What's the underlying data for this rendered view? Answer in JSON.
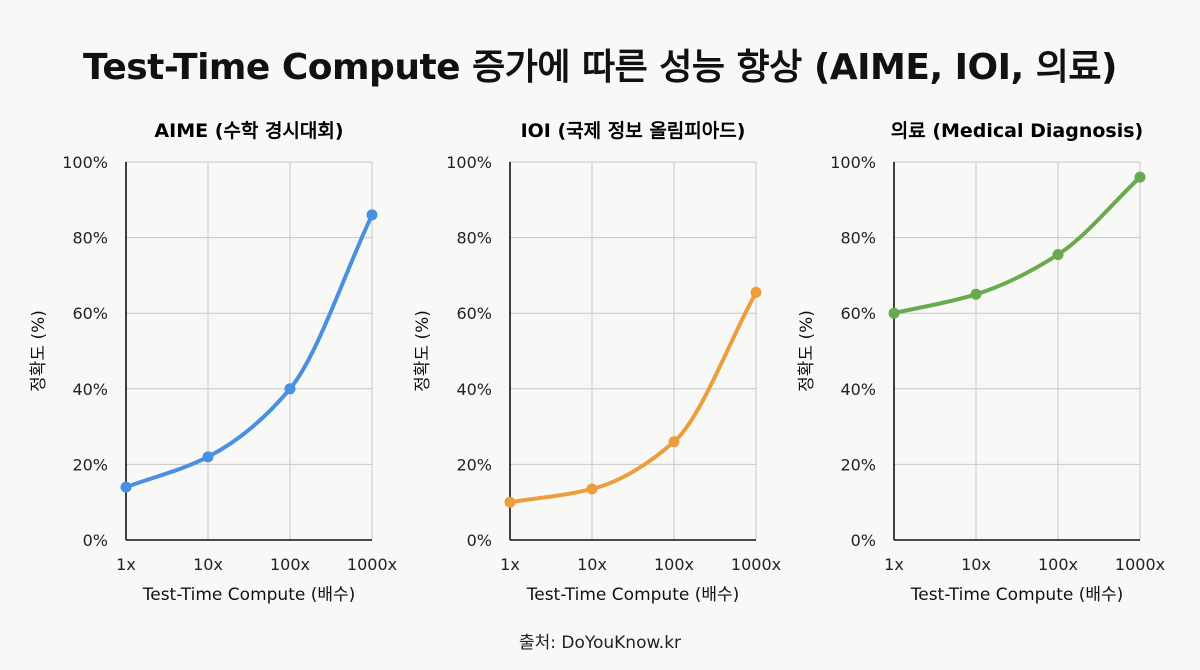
{
  "title": "Test-Time Compute 증가에 따른 성능 향상 (AIME, IOI, 의료)",
  "source": "출처: DoYouKnow.kr",
  "chart_data": [
    {
      "type": "line",
      "title": "AIME (수학 경시대회)",
      "xlabel": "Test-Time Compute (배수)",
      "ylabel": "정확도 (%)",
      "x": [
        "1x",
        "10x",
        "100x",
        "1000x"
      ],
      "x_scale": "log",
      "ylim": [
        0,
        100
      ],
      "yticks": [
        "0%",
        "20%",
        "40%",
        "60%",
        "80%",
        "100%"
      ],
      "grid": true,
      "series": [
        {
          "values": [
            14,
            22,
            40,
            86
          ],
          "color": "#4a90e2"
        }
      ]
    },
    {
      "type": "line",
      "title": "IOI (국제 정보 올림피아드)",
      "xlabel": "Test-Time Compute (배수)",
      "ylabel": "정확도 (%)",
      "x": [
        "1x",
        "10x",
        "100x",
        "1000x"
      ],
      "x_scale": "log",
      "ylim": [
        0,
        100
      ],
      "yticks": [
        "0%",
        "20%",
        "40%",
        "60%",
        "80%",
        "100%"
      ],
      "grid": true,
      "series": [
        {
          "values": [
            10,
            13.5,
            26,
            65.5
          ],
          "color": "#ec9e3e"
        }
      ]
    },
    {
      "type": "line",
      "title": "의료 (Medical Diagnosis)",
      "xlabel": "Test-Time Compute (배수)",
      "ylabel": "정확도 (%)",
      "x": [
        "1x",
        "10x",
        "100x",
        "1000x"
      ],
      "x_scale": "log",
      "ylim": [
        0,
        100
      ],
      "yticks": [
        "0%",
        "20%",
        "40%",
        "60%",
        "80%",
        "100%"
      ],
      "grid": true,
      "series": [
        {
          "values": [
            60,
            65,
            75.5,
            96
          ],
          "color": "#6aaa4e"
        }
      ]
    }
  ]
}
